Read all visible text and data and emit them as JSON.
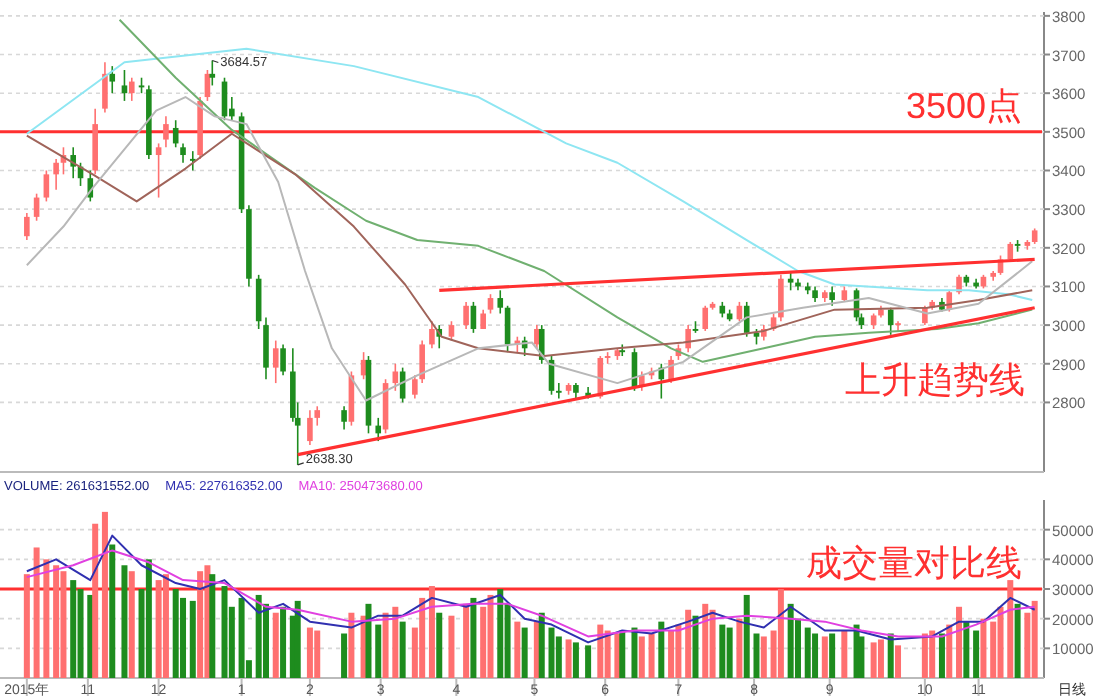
{
  "chart_data": [
    {
      "type": "candlestick",
      "xlim": [
        "2015-09-27",
        "2016-11-27"
      ],
      "ylim": [
        2620,
        3810
      ],
      "yticks": [
        2800,
        2900,
        3000,
        3100,
        3200,
        3300,
        3400,
        3500,
        3600,
        3700,
        3800
      ],
      "tick_labels": "y",
      "grid": "y",
      "x": [
        "2015-10-08",
        "2015-10-12",
        "2015-10-16",
        "2015-10-20",
        "2015-10-23",
        "2015-10-27",
        "2015-10-30",
        "2015-11-03",
        "2015-11-05",
        "2015-11-09",
        "2015-11-12",
        "2015-11-17",
        "2015-11-20",
        "2015-11-24",
        "2015-11-27",
        "2015-12-01",
        "2015-12-04",
        "2015-12-08",
        "2015-12-11",
        "2015-12-15",
        "2015-12-18",
        "2015-12-21",
        "2015-12-23",
        "2015-12-28",
        "2015-12-31",
        "2016-01-04",
        "2016-01-07",
        "2016-01-11",
        "2016-01-14",
        "2016-01-18",
        "2016-01-21",
        "2016-01-25",
        "2016-01-27",
        "2016-02-01",
        "2016-02-04",
        "2016-02-15",
        "2016-02-18",
        "2016-02-23",
        "2016-02-25",
        "2016-02-29",
        "2016-03-03",
        "2016-03-07",
        "2016-03-10",
        "2016-03-15",
        "2016-03-18",
        "2016-03-22",
        "2016-03-25",
        "2016-03-30",
        "2016-04-05",
        "2016-04-08",
        "2016-04-12",
        "2016-04-15",
        "2016-04-19",
        "2016-04-22",
        "2016-04-26",
        "2016-04-29",
        "2016-05-04",
        "2016-05-06",
        "2016-05-10",
        "2016-05-13",
        "2016-05-17",
        "2016-05-20",
        "2016-05-25",
        "2016-05-30",
        "2016-06-02",
        "2016-06-06",
        "2016-06-08",
        "2016-06-13",
        "2016-06-16",
        "2016-06-20",
        "2016-06-24",
        "2016-06-28",
        "2016-07-01",
        "2016-07-05",
        "2016-07-08",
        "2016-07-12",
        "2016-07-15",
        "2016-07-19",
        "2016-07-22",
        "2016-07-26",
        "2016-07-29",
        "2016-08-02",
        "2016-08-05",
        "2016-08-09",
        "2016-08-12",
        "2016-08-16",
        "2016-08-19",
        "2016-08-23",
        "2016-08-26",
        "2016-08-30",
        "2016-09-02",
        "2016-09-07",
        "2016-09-12",
        "2016-09-14",
        "2016-09-19",
        "2016-09-22",
        "2016-09-26",
        "2016-09-29",
        "2016-10-10",
        "2016-10-13",
        "2016-10-17",
        "2016-10-20",
        "2016-10-24",
        "2016-10-27",
        "2016-10-31",
        "2016-11-03",
        "2016-11-07",
        "2016-11-10",
        "2016-11-14",
        "2016-11-17",
        "2016-11-21",
        "2016-11-24"
      ],
      "ohlc": [
        [
          3230,
          3290,
          3220,
          3280
        ],
        [
          3280,
          3340,
          3270,
          3330
        ],
        [
          3330,
          3400,
          3320,
          3390
        ],
        [
          3390,
          3430,
          3350,
          3420
        ],
        [
          3420,
          3460,
          3390,
          3440
        ],
        [
          3440,
          3460,
          3380,
          3410
        ],
        [
          3410,
          3420,
          3360,
          3380
        ],
        [
          3380,
          3400,
          3320,
          3330
        ],
        [
          3400,
          3560,
          3390,
          3520
        ],
        [
          3560,
          3680,
          3550,
          3650
        ],
        [
          3650,
          3670,
          3600,
          3630
        ],
        [
          3620,
          3660,
          3580,
          3600
        ],
        [
          3600,
          3640,
          3580,
          3630
        ],
        [
          3620,
          3640,
          3600,
          3615
        ],
        [
          3610,
          3620,
          3430,
          3440
        ],
        [
          3440,
          3470,
          3330,
          3460
        ],
        [
          3480,
          3540,
          3460,
          3520
        ],
        [
          3510,
          3530,
          3460,
          3470
        ],
        [
          3460,
          3470,
          3420,
          3440
        ],
        [
          3430,
          3450,
          3400,
          3425
        ],
        [
          3440,
          3590,
          3430,
          3580
        ],
        [
          3590,
          3660,
          3580,
          3650
        ],
        [
          3650,
          3684.57,
          3620,
          3640
        ],
        [
          3630,
          3640,
          3530,
          3540
        ],
        [
          3560,
          3590,
          3530,
          3540
        ],
        [
          3540,
          3550,
          3290,
          3300
        ],
        [
          3300,
          3310,
          3100,
          3120
        ],
        [
          3120,
          3130,
          2990,
          3010
        ],
        [
          3000,
          3020,
          2860,
          2890
        ],
        [
          2890,
          2960,
          2850,
          2940
        ],
        [
          2940,
          2950,
          2870,
          2880
        ],
        [
          2880,
          2940,
          2750,
          2760
        ],
        [
          2760,
          2800,
          2638.3,
          2740
        ],
        [
          2700,
          2780,
          2690,
          2760
        ],
        [
          2760,
          2790,
          2740,
          2780
        ],
        [
          2780,
          2790,
          2730,
          2750
        ],
        [
          2750,
          2880,
          2740,
          2870
        ],
        [
          2870,
          2930,
          2860,
          2910
        ],
        [
          2910,
          2920,
          2720,
          2740
        ],
        [
          2740,
          2760,
          2700,
          2720
        ],
        [
          2730,
          2860,
          2720,
          2850
        ],
        [
          2850,
          2900,
          2830,
          2880
        ],
        [
          2880,
          2890,
          2800,
          2810
        ],
        [
          2820,
          2870,
          2810,
          2860
        ],
        [
          2860,
          2960,
          2850,
          2950
        ],
        [
          2950,
          3010,
          2940,
          2990
        ],
        [
          2990,
          3000,
          2940,
          2970
        ],
        [
          2970,
          3010,
          2960,
          3000
        ],
        [
          3000,
          3060,
          2990,
          3050
        ],
        [
          3050,
          3060,
          2980,
          2990
        ],
        [
          2990,
          3040,
          2990,
          3030
        ],
        [
          3040,
          3080,
          3030,
          3070
        ],
        [
          3070,
          3090,
          3030,
          3045
        ],
        [
          3045,
          3050,
          2930,
          2950
        ],
        [
          2950,
          2970,
          2930,
          2960
        ],
        [
          2960,
          2970,
          2920,
          2940
        ],
        [
          2950,
          3000,
          2940,
          2990
        ],
        [
          2990,
          3000,
          2900,
          2910
        ],
        [
          2910,
          2920,
          2820,
          2830
        ],
        [
          2830,
          2850,
          2810,
          2825
        ],
        [
          2830,
          2850,
          2820,
          2845
        ],
        [
          2845,
          2850,
          2807,
          2825
        ],
        [
          2825,
          2840,
          2810,
          2815
        ],
        [
          2815,
          2920,
          2810,
          2915
        ],
        [
          2915,
          2930,
          2900,
          2920
        ],
        [
          2920,
          2940,
          2910,
          2935
        ],
        [
          2935,
          2950,
          2920,
          2930
        ],
        [
          2930,
          2940,
          2830,
          2840
        ],
        [
          2840,
          2880,
          2830,
          2870
        ],
        [
          2870,
          2890,
          2860,
          2880
        ],
        [
          2890,
          2900,
          2810,
          2860
        ],
        [
          2860,
          2920,
          2850,
          2910
        ],
        [
          2920,
          2950,
          2910,
          2940
        ],
        [
          2940,
          3000,
          2930,
          2990
        ],
        [
          2990,
          3010,
          2980,
          2985
        ],
        [
          2990,
          3050,
          2985,
          3045
        ],
        [
          3045,
          3060,
          3040,
          3055
        ],
        [
          3050,
          3060,
          3020,
          3030
        ],
        [
          3030,
          3040,
          3010,
          3015
        ],
        [
          3015,
          3060,
          3010,
          3050
        ],
        [
          3050,
          3060,
          2970,
          2980
        ],
        [
          2980,
          2990,
          2950,
          2970
        ],
        [
          2970,
          3000,
          2960,
          2990
        ],
        [
          2990,
          3030,
          2985,
          3020
        ],
        [
          3020,
          3130,
          3010,
          3120
        ],
        [
          3120,
          3140,
          3090,
          3110
        ],
        [
          3110,
          3120,
          3090,
          3100
        ],
        [
          3100,
          3110,
          3080,
          3090
        ],
        [
          3090,
          3100,
          3060,
          3070
        ],
        [
          3070,
          3090,
          3060,
          3085
        ],
        [
          3085,
          3100,
          3050,
          3065
        ],
        [
          3065,
          3100,
          3060,
          3090
        ],
        [
          3090,
          3095,
          3010,
          3020
        ],
        [
          3020,
          3030,
          2990,
          3000
        ],
        [
          3000,
          3030,
          2990,
          3025
        ],
        [
          3025,
          3050,
          3020,
          3040
        ],
        [
          3040,
          3045,
          2975,
          3000
        ],
        [
          3000,
          3010,
          2985,
          3005
        ],
        [
          3005,
          3050,
          3000,
          3045
        ],
        [
          3045,
          3065,
          3040,
          3060
        ],
        [
          3060,
          3070,
          3035,
          3040
        ],
        [
          3040,
          3090,
          3035,
          3085
        ],
        [
          3085,
          3130,
          3080,
          3125
        ],
        [
          3125,
          3130,
          3100,
          3110
        ],
        [
          3110,
          3120,
          3095,
          3100
        ],
        [
          3100,
          3130,
          3095,
          3125
        ],
        [
          3125,
          3140,
          3115,
          3135
        ],
        [
          3135,
          3180,
          3130,
          3170
        ],
        [
          3170,
          3215,
          3165,
          3210
        ],
        [
          3210,
          3220,
          3190,
          3205
        ],
        [
          3205,
          3220,
          3195,
          3215
        ],
        [
          3215,
          3250,
          3210,
          3245
        ]
      ],
      "colors": [
        "#ff7070",
        "#ff7070",
        "#ff7070",
        "#ff7070",
        "#ff7070",
        "#1e8c1e",
        "#1e8c1e",
        "#1e8c1e",
        "#ff7070",
        "#ff7070",
        "#1e8c1e",
        "#1e8c1e",
        "#ff7070",
        "#1e8c1e",
        "#1e8c1e",
        "#ff7070",
        "#ff7070",
        "#1e8c1e",
        "#1e8c1e",
        "#1e8c1e",
        "#ff7070",
        "#ff7070",
        "#1e8c1e",
        "#1e8c1e",
        "#1e8c1e",
        "#1e8c1e",
        "#1e8c1e",
        "#1e8c1e",
        "#1e8c1e",
        "#ff7070",
        "#1e8c1e",
        "#1e8c1e",
        "#1e8c1e",
        "#ff7070",
        "#ff7070",
        "#1e8c1e",
        "#ff7070",
        "#ff7070",
        "#1e8c1e",
        "#1e8c1e",
        "#ff7070",
        "#ff7070",
        "#1e8c1e",
        "#ff7070",
        "#ff7070",
        "#ff7070",
        "#1e8c1e",
        "#ff7070",
        "#ff7070",
        "#1e8c1e",
        "#ff7070",
        "#ff7070",
        "#1e8c1e",
        "#1e8c1e",
        "#ff7070",
        "#1e8c1e",
        "#ff7070",
        "#1e8c1e",
        "#1e8c1e",
        "#1e8c1e",
        "#ff7070",
        "#1e8c1e",
        "#1e8c1e",
        "#ff7070",
        "#ff7070",
        "#ff7070",
        "#1e8c1e",
        "#1e8c1e",
        "#ff7070",
        "#ff7070",
        "#1e8c1e",
        "#ff7070",
        "#ff7070",
        "#ff7070",
        "#1e8c1e",
        "#ff7070",
        "#ff7070",
        "#1e8c1e",
        "#1e8c1e",
        "#ff7070",
        "#1e8c1e",
        "#1e8c1e",
        "#ff7070",
        "#ff7070",
        "#ff7070",
        "#1e8c1e",
        "#1e8c1e",
        "#1e8c1e",
        "#1e8c1e",
        "#ff7070",
        "#1e8c1e",
        "#ff7070",
        "#1e8c1e",
        "#1e8c1e",
        "#ff7070",
        "#ff7070",
        "#1e8c1e",
        "#ff7070",
        "#ff7070",
        "#ff7070",
        "#1e8c1e",
        "#ff7070",
        "#ff7070",
        "#1e8c1e",
        "#1e8c1e",
        "#ff7070",
        "#ff7070",
        "#ff7070",
        "#ff7070",
        "#1e8c1e",
        "#ff7070",
        "#ff7070"
      ],
      "series": [
        {
          "type": "line",
          "color": "#8ee6f2",
          "x": [
            "2015-10-08",
            "2015-11-17",
            "2016-01-06",
            "2016-02-19",
            "2016-04-10",
            "2016-05-16",
            "2016-06-06",
            "2016-07-03",
            "2016-07-29",
            "2016-08-19",
            "2016-09-03",
            "2016-10-11",
            "2016-10-28",
            "2016-11-13",
            "2016-11-23"
          ],
          "values": [
            3495,
            3680,
            3715,
            3670,
            3590,
            3470,
            3420,
            3320,
            3220,
            3140,
            3105,
            3090,
            3090,
            3080,
            3065
          ]
        },
        {
          "type": "line",
          "color": "#70b070",
          "x": [
            "2015-11-15",
            "2015-12-08",
            "2015-12-31",
            "2016-02-03",
            "2016-02-24",
            "2016-03-16",
            "2016-04-10",
            "2016-05-07",
            "2016-06-06",
            "2016-06-28",
            "2016-07-11",
            "2016-08-05",
            "2016-08-26",
            "2016-09-17",
            "2016-10-15",
            "2016-11-01",
            "2016-11-23"
          ],
          "values": [
            3790,
            3640,
            3505,
            3355,
            3270,
            3220,
            3205,
            3140,
            3020,
            2940,
            2905,
            2940,
            2970,
            2980,
            2990,
            3005,
            3040
          ]
        },
        {
          "type": "line",
          "color": "#a0645a",
          "x": [
            "2015-10-08",
            "2015-11-04",
            "2015-11-22",
            "2015-12-12",
            "2015-12-31",
            "2016-01-26",
            "2016-02-19",
            "2016-03-11",
            "2016-03-26",
            "2016-04-10",
            "2016-05-07",
            "2016-06-06",
            "2016-07-03",
            "2016-08-05",
            "2016-09-03",
            "2016-10-11",
            "2016-11-01",
            "2016-11-23"
          ],
          "values": [
            3490,
            3390,
            3320,
            3405,
            3495,
            3390,
            3255,
            3105,
            2970,
            2940,
            2920,
            2940,
            2955,
            2985,
            3040,
            3045,
            3065,
            3090
          ]
        },
        {
          "type": "line",
          "color": "#b8b8b8",
          "x": [
            "2015-10-08",
            "2015-10-23",
            "2015-11-04",
            "2015-11-30",
            "2015-12-12",
            "2015-12-24",
            "2016-01-06",
            "2016-01-19",
            "2016-01-30",
            "2016-02-10",
            "2016-02-24",
            "2016-03-16",
            "2016-04-10",
            "2016-05-02",
            "2016-05-09",
            "2016-06-06",
            "2016-07-03",
            "2016-07-29",
            "2016-08-21",
            "2016-09-17",
            "2016-10-11",
            "2016-11-01",
            "2016-11-23"
          ],
          "values": [
            3155,
            3255,
            3355,
            3555,
            3590,
            3540,
            3520,
            3370,
            3140,
            2940,
            2805,
            2870,
            2940,
            2955,
            2900,
            2850,
            2905,
            3020,
            3045,
            3070,
            3030,
            3055,
            3165
          ]
        },
        {
          "type": "line",
          "color": "#ff3030",
          "x": [
            "2016-03-25",
            "2016-11-24"
          ],
          "values": [
            3090,
            3170
          ]
        },
        {
          "type": "line",
          "color": "#ff3030",
          "name": "上升趋势线",
          "x": [
            "2016-01-27",
            "2016-11-24"
          ],
          "values": [
            2665,
            3045
          ]
        }
      ],
      "ref_lines": [
        {
          "axis": "y",
          "value": 3500,
          "label": "3500点",
          "color": "#ff3030"
        }
      ],
      "annotations": [
        {
          "text": "3684.57",
          "x": "2015-12-23",
          "y": 3684.57
        },
        {
          "text": "2638.30",
          "x": "2016-01-27",
          "y": 2638.3
        }
      ]
    },
    {
      "type": "bar",
      "xlim": [
        "2015-09-27",
        "2016-11-27"
      ],
      "ylim": [
        0,
        60000
      ],
      "yticks": [
        10000,
        20000,
        30000,
        40000,
        50000
      ],
      "grid": "y",
      "legend": "top left",
      "xticks": [
        {
          "value": "2015-10-08",
          "label": "2015年"
        },
        {
          "value": "2015-11-02",
          "label": "11"
        },
        {
          "value": "2015-12-01",
          "label": "12"
        },
        {
          "value": "2016-01-04",
          "label": "1"
        },
        {
          "value": "2016-02-01",
          "label": "2"
        },
        {
          "value": "2016-03-01",
          "label": "3"
        },
        {
          "value": "2016-04-01",
          "label": "4"
        },
        {
          "value": "2016-05-03",
          "label": "5"
        },
        {
          "value": "2016-06-01",
          "label": "6"
        },
        {
          "value": "2016-07-01",
          "label": "7"
        },
        {
          "value": "2016-08-01",
          "label": "8"
        },
        {
          "value": "2016-09-01",
          "label": "9"
        },
        {
          "value": "2016-10-10",
          "label": "10"
        },
        {
          "value": "2016-11-01",
          "label": "11"
        }
      ],
      "x": [
        "2015-10-08",
        "2015-10-12",
        "2015-10-16",
        "2015-10-20",
        "2015-10-23",
        "2015-10-27",
        "2015-10-30",
        "2015-11-03",
        "2015-11-05",
        "2015-11-09",
        "2015-11-12",
        "2015-11-17",
        "2015-11-20",
        "2015-11-24",
        "2015-11-27",
        "2015-12-01",
        "2015-12-04",
        "2015-12-08",
        "2015-12-11",
        "2015-12-15",
        "2015-12-18",
        "2015-12-21",
        "2015-12-23",
        "2015-12-28",
        "2015-12-31",
        "2016-01-04",
        "2016-01-07",
        "2016-01-11",
        "2016-01-14",
        "2016-01-18",
        "2016-01-21",
        "2016-01-25",
        "2016-01-27",
        "2016-02-01",
        "2016-02-04",
        "2016-02-15",
        "2016-02-18",
        "2016-02-23",
        "2016-02-25",
        "2016-02-29",
        "2016-03-03",
        "2016-03-07",
        "2016-03-10",
        "2016-03-15",
        "2016-03-18",
        "2016-03-22",
        "2016-03-25",
        "2016-03-30",
        "2016-04-05",
        "2016-04-08",
        "2016-04-12",
        "2016-04-15",
        "2016-04-19",
        "2016-04-22",
        "2016-04-26",
        "2016-04-29",
        "2016-05-04",
        "2016-05-06",
        "2016-05-10",
        "2016-05-13",
        "2016-05-17",
        "2016-05-20",
        "2016-05-25",
        "2016-05-30",
        "2016-06-02",
        "2016-06-06",
        "2016-06-08",
        "2016-06-13",
        "2016-06-16",
        "2016-06-20",
        "2016-06-24",
        "2016-06-28",
        "2016-07-01",
        "2016-07-05",
        "2016-07-08",
        "2016-07-12",
        "2016-07-15",
        "2016-07-19",
        "2016-07-22",
        "2016-07-26",
        "2016-07-29",
        "2016-08-02",
        "2016-08-05",
        "2016-08-09",
        "2016-08-12",
        "2016-08-16",
        "2016-08-19",
        "2016-08-23",
        "2016-08-26",
        "2016-08-30",
        "2016-09-02",
        "2016-09-07",
        "2016-09-12",
        "2016-09-14",
        "2016-09-19",
        "2016-09-22",
        "2016-09-26",
        "2016-09-29",
        "2016-10-10",
        "2016-10-13",
        "2016-10-17",
        "2016-10-20",
        "2016-10-24",
        "2016-10-27",
        "2016-10-31",
        "2016-11-03",
        "2016-11-07",
        "2016-11-10",
        "2016-11-14",
        "2016-11-17",
        "2016-11-21",
        "2016-11-24"
      ],
      "series": [
        {
          "name": "VOLUME: 261631552.00",
          "color": "#1a237e",
          "values": [
            35000,
            44000,
            40000,
            38000,
            36000,
            33000,
            30000,
            28000,
            52000,
            56000,
            45000,
            38000,
            36000,
            30000,
            40000,
            33000,
            35000,
            30000,
            27000,
            26000,
            36000,
            38000,
            35000,
            31000,
            24000,
            27000,
            6000,
            28000,
            25000,
            22000,
            24000,
            21000,
            26000,
            17000,
            16000,
            15000,
            22000,
            21000,
            25000,
            18000,
            22000,
            24000,
            19000,
            17000,
            27000,
            31000,
            22000,
            21000,
            25000,
            27000,
            24000,
            28000,
            30000,
            25000,
            19000,
            17000,
            19000,
            22000,
            17000,
            14000,
            13000,
            12000,
            11000,
            18000,
            16000,
            15000,
            16000,
            17000,
            14000,
            15000,
            19000,
            16000,
            18000,
            23000,
            21000,
            25000,
            23000,
            18000,
            17000,
            20000,
            28000,
            15000,
            14000,
            16000,
            30000,
            25000,
            20000,
            17000,
            15000,
            14000,
            15000,
            16000,
            18000,
            14000,
            12000,
            13000,
            15000,
            11000,
            15000,
            16000,
            15000,
            18000,
            24000,
            19000,
            16000,
            20000,
            19000,
            24000,
            33000,
            25000,
            22000,
            26000
          ],
          "colors": [
            "#ff7070",
            "#ff7070",
            "#ff7070",
            "#ff7070",
            "#ff7070",
            "#1e8c1e",
            "#1e8c1e",
            "#1e8c1e",
            "#ff7070",
            "#ff7070",
            "#1e8c1e",
            "#1e8c1e",
            "#ff7070",
            "#1e8c1e",
            "#1e8c1e",
            "#ff7070",
            "#ff7070",
            "#1e8c1e",
            "#1e8c1e",
            "#1e8c1e",
            "#ff7070",
            "#ff7070",
            "#1e8c1e",
            "#1e8c1e",
            "#1e8c1e",
            "#1e8c1e",
            "#1e8c1e",
            "#1e8c1e",
            "#1e8c1e",
            "#ff7070",
            "#1e8c1e",
            "#1e8c1e",
            "#1e8c1e",
            "#ff7070",
            "#ff7070",
            "#1e8c1e",
            "#ff7070",
            "#ff7070",
            "#1e8c1e",
            "#1e8c1e",
            "#ff7070",
            "#ff7070",
            "#1e8c1e",
            "#ff7070",
            "#ff7070",
            "#ff7070",
            "#1e8c1e",
            "#ff7070",
            "#ff7070",
            "#1e8c1e",
            "#ff7070",
            "#ff7070",
            "#1e8c1e",
            "#1e8c1e",
            "#ff7070",
            "#1e8c1e",
            "#ff7070",
            "#1e8c1e",
            "#1e8c1e",
            "#1e8c1e",
            "#ff7070",
            "#1e8c1e",
            "#1e8c1e",
            "#ff7070",
            "#ff7070",
            "#ff7070",
            "#1e8c1e",
            "#1e8c1e",
            "#ff7070",
            "#ff7070",
            "#1e8c1e",
            "#ff7070",
            "#ff7070",
            "#ff7070",
            "#1e8c1e",
            "#ff7070",
            "#ff7070",
            "#1e8c1e",
            "#1e8c1e",
            "#ff7070",
            "#1e8c1e",
            "#1e8c1e",
            "#ff7070",
            "#ff7070",
            "#ff7070",
            "#1e8c1e",
            "#1e8c1e",
            "#1e8c1e",
            "#1e8c1e",
            "#ff7070",
            "#1e8c1e",
            "#ff7070",
            "#1e8c1e",
            "#1e8c1e",
            "#ff7070",
            "#ff7070",
            "#1e8c1e",
            "#ff7070",
            "#ff7070",
            "#ff7070",
            "#1e8c1e",
            "#ff7070",
            "#ff7070",
            "#1e8c1e",
            "#1e8c1e",
            "#ff7070",
            "#ff7070",
            "#ff7070",
            "#ff7070",
            "#1e8c1e",
            "#ff7070",
            "#ff7070"
          ]
        },
        {
          "name": "MA5: 227616352.00",
          "type": "line",
          "color": "#3030b0",
          "x": [
            "2015-10-08",
            "2015-10-20",
            "2015-11-03",
            "2015-11-12",
            "2015-11-24",
            "2015-12-08",
            "2015-12-18",
            "2015-12-28",
            "2016-01-11",
            "2016-01-21",
            "2016-02-01",
            "2016-02-18",
            "2016-02-29",
            "2016-03-10",
            "2016-03-22",
            "2016-04-05",
            "2016-04-19",
            "2016-04-29",
            "2016-05-10",
            "2016-05-25",
            "2016-06-08",
            "2016-06-20",
            "2016-07-05",
            "2016-07-15",
            "2016-07-26",
            "2016-08-05",
            "2016-08-16",
            "2016-08-30",
            "2016-09-12",
            "2016-09-26",
            "2016-10-13",
            "2016-10-24",
            "2016-11-03",
            "2016-11-14",
            "2016-11-24"
          ],
          "values": [
            36000,
            40000,
            33000,
            48000,
            38000,
            32000,
            30000,
            33000,
            22000,
            25000,
            19000,
            17000,
            21000,
            21000,
            27000,
            24000,
            28000,
            20000,
            18000,
            12000,
            16000,
            15000,
            19000,
            22000,
            19000,
            17000,
            24000,
            16000,
            16000,
            13000,
            14000,
            19000,
            19000,
            27000,
            23000
          ]
        },
        {
          "name": "MA10: 250473680.00",
          "type": "line",
          "color": "#e040e0",
          "x": [
            "2015-10-08",
            "2015-10-27",
            "2015-11-12",
            "2015-11-27",
            "2015-12-11",
            "2015-12-28",
            "2016-01-14",
            "2016-01-27",
            "2016-02-18",
            "2016-03-07",
            "2016-03-22",
            "2016-04-08",
            "2016-04-22",
            "2016-05-06",
            "2016-05-25",
            "2016-06-13",
            "2016-07-01",
            "2016-07-15",
            "2016-07-29",
            "2016-08-16",
            "2016-08-30",
            "2016-09-14",
            "2016-09-29",
            "2016-10-17",
            "2016-10-31",
            "2016-11-14",
            "2016-11-24"
          ],
          "values": [
            34000,
            38000,
            43000,
            39000,
            33000,
            32000,
            24000,
            23000,
            19000,
            20000,
            24000,
            25000,
            25000,
            21000,
            14000,
            16000,
            16000,
            20000,
            21000,
            20000,
            19000,
            16000,
            14000,
            14000,
            18000,
            23000,
            24000
          ]
        }
      ],
      "ref_lines": [
        {
          "axis": "y",
          "value": 30000,
          "label": "成交量对比线",
          "color": "#ff3030"
        }
      ],
      "annotations": [
        "日线"
      ]
    }
  ]
}
